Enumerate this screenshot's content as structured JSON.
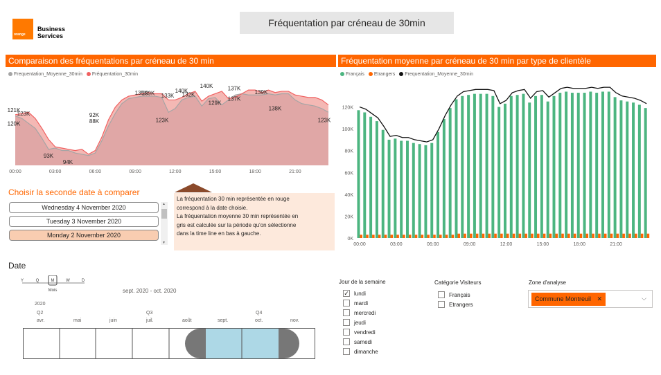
{
  "header": {
    "logo_word": "orange",
    "logo_line1": "Business",
    "logo_line2": "Services",
    "title": "Fréquentation par créneau de 30min"
  },
  "left_chart": {
    "section_title": "Comparaison des fréquentations par créneau de 30 min",
    "legend": [
      {
        "name": "Frequentation_Moyenne_30min",
        "color": "#a5a5a5"
      },
      {
        "name": "Fréquentation_30min",
        "color": "#f06060"
      }
    ],
    "x_ticks": [
      "00:00",
      "03:00",
      "06:00",
      "09:00",
      "12:00",
      "15:00",
      "18:00",
      "21:00"
    ],
    "data_labels": [
      "121K",
      "123K",
      "120K",
      "93K",
      "94K",
      "92K",
      "88K",
      "135K",
      "139K",
      "123K",
      "133K",
      "140K",
      "132K",
      "140K",
      "129K",
      "137K",
      "137K",
      "139K",
      "138K",
      "123K"
    ]
  },
  "right_chart": {
    "section_title": "Fréquentation moyenne par créneau de 30 min par type de clientèle",
    "legend": [
      {
        "name": "Français",
        "color": "#4cb580"
      },
      {
        "name": "Etrangers",
        "color": "#ff6600"
      },
      {
        "name": "Frequentation_Moyenne_30min",
        "color": "#111111"
      }
    ],
    "y_ticks": [
      "120K",
      "100K",
      "80K",
      "60K",
      "40K",
      "20K",
      "0K"
    ],
    "x_ticks": [
      "00:00",
      "03:00",
      "06:00",
      "09:00",
      "12:00",
      "15:00",
      "18:00",
      "21:00"
    ]
  },
  "chart_data": [
    {
      "type": "area",
      "title": "Comparaison des fréquentations par créneau de 30 min",
      "x": [
        "00:00",
        "00:30",
        "01:00",
        "01:30",
        "02:00",
        "02:30",
        "03:00",
        "03:30",
        "04:00",
        "04:30",
        "05:00",
        "05:30",
        "06:00",
        "06:30",
        "07:00",
        "07:30",
        "08:00",
        "08:30",
        "09:00",
        "09:30",
        "10:00",
        "10:30",
        "11:00",
        "11:30",
        "12:00",
        "12:30",
        "13:00",
        "13:30",
        "14:00",
        "14:30",
        "15:00",
        "15:30",
        "16:00",
        "16:30",
        "17:00",
        "17:30",
        "18:00",
        "18:30",
        "19:00",
        "19:30",
        "20:00",
        "20:30",
        "21:00",
        "21:30",
        "22:00",
        "22:30",
        "23:00",
        "23:30"
      ],
      "series": [
        {
          "name": "Frequentation_Moyenne_30min",
          "values": [
            120,
            118,
            114,
            110,
            102,
            93,
            94,
            92,
            92,
            90,
            89,
            88,
            90,
            100,
            112,
            122,
            130,
            134,
            135,
            136,
            136,
            136,
            135,
            123,
            126,
            133,
            135,
            136,
            128,
            134,
            135,
            129,
            133,
            137,
            138,
            137,
            137,
            137,
            138,
            137,
            138,
            138,
            133,
            130,
            129,
            128,
            126,
            123
          ]
        },
        {
          "name": "Fréquentation_30min",
          "values": [
            121,
            122,
            123,
            118,
            110,
            101,
            95,
            94,
            93,
            92,
            93,
            89,
            92,
            103,
            117,
            127,
            133,
            136,
            137,
            138,
            139,
            138,
            138,
            133,
            133,
            135,
            138,
            140,
            132,
            136,
            138,
            140,
            134,
            135,
            138,
            141,
            141,
            139,
            141,
            139,
            140,
            140,
            137,
            136,
            135,
            135,
            133,
            129
          ]
        }
      ],
      "ylim": [
        80,
        145
      ]
    },
    {
      "type": "bar",
      "title": "Fréquentation moyenne par créneau de 30 min par type de clientèle",
      "x": [
        "00:00",
        "00:30",
        "01:00",
        "01:30",
        "02:00",
        "02:30",
        "03:00",
        "03:30",
        "04:00",
        "04:30",
        "05:00",
        "05:30",
        "06:00",
        "06:30",
        "07:00",
        "07:30",
        "08:00",
        "08:30",
        "09:00",
        "09:30",
        "10:00",
        "10:30",
        "11:00",
        "11:30",
        "12:00",
        "12:30",
        "13:00",
        "13:30",
        "14:00",
        "14:30",
        "15:00",
        "15:30",
        "16:00",
        "16:30",
        "17:00",
        "17:30",
        "18:00",
        "18:30",
        "19:00",
        "19:30",
        "20:00",
        "20:30",
        "21:00",
        "21:30",
        "22:00",
        "22:30",
        "23:00",
        "23:30"
      ],
      "series": [
        {
          "name": "Français",
          "values": [
            117,
            115,
            111,
            107,
            99,
            90,
            91,
            89,
            89,
            87,
            86,
            85,
            87,
            97,
            109,
            119,
            127,
            130,
            131,
            132,
            132,
            132,
            130,
            120,
            123,
            130,
            131,
            132,
            124,
            130,
            131,
            125,
            130,
            133,
            134,
            133,
            133,
            133,
            134,
            133,
            134,
            134,
            129,
            126,
            125,
            124,
            122,
            119
          ]
        },
        {
          "name": "Etrangers",
          "values": [
            3,
            3,
            3,
            3,
            3,
            3,
            3,
            3,
            3,
            3,
            3,
            3,
            3,
            3,
            3,
            3,
            4,
            4,
            4,
            4,
            4,
            4,
            4,
            4,
            4,
            4,
            4,
            4,
            4,
            4,
            4,
            4,
            4,
            4,
            4,
            4,
            4,
            4,
            4,
            4,
            4,
            4,
            4,
            4,
            4,
            4,
            4,
            4
          ]
        },
        {
          "name": "Frequentation_Moyenne_30min",
          "values": [
            120,
            118,
            114,
            110,
            102,
            93,
            94,
            92,
            92,
            90,
            89,
            88,
            90,
            100,
            112,
            122,
            130,
            134,
            135,
            136,
            136,
            136,
            135,
            123,
            126,
            133,
            135,
            136,
            128,
            134,
            135,
            129,
            133,
            137,
            138,
            137,
            137,
            137,
            138,
            137,
            138,
            138,
            133,
            130,
            129,
            128,
            126,
            123
          ]
        }
      ],
      "ylim": [
        0,
        140
      ]
    }
  ],
  "compare": {
    "title": "Choisir la seconde date à comparer",
    "dates": [
      {
        "label": "Wednesday 4 November 2020",
        "selected": false
      },
      {
        "label": "Tuesday 3 November 2020",
        "selected": false
      },
      {
        "label": "Monday 2 November 2020",
        "selected": true
      }
    ],
    "info_line1": "La fréquentation 30 min représentée en rouge",
    "info_line2": "correspond à la date choisie.",
    "info_line3": "La fréquentation moyenne 30 min représentée en",
    "info_line4": "gris est calculée sur la période qu'on sélectionne",
    "info_line5": "dans la time line en bas à gauche."
  },
  "timeline": {
    "title": "Date",
    "granularity": [
      "Y",
      "Q",
      "M",
      "W",
      "D"
    ],
    "granularity_selected": "M",
    "granularity_caption": "Mois",
    "range_label": "sept. 2020 - oct. 2020",
    "year": "2020",
    "quarters": [
      "Q2",
      "Q3",
      "Q4"
    ],
    "months": [
      "avr.",
      "mai",
      "juin",
      "juil.",
      "août",
      "sept.",
      "oct.",
      "nov."
    ]
  },
  "filters": {
    "day_title": "Jour de la semaine",
    "days": [
      {
        "label": "lundi",
        "checked": true
      },
      {
        "label": "mardi",
        "checked": false
      },
      {
        "label": "mercredi",
        "checked": false
      },
      {
        "label": "jeudi",
        "checked": false
      },
      {
        "label": "vendredi",
        "checked": false
      },
      {
        "label": "samedi",
        "checked": false
      },
      {
        "label": "dimanche",
        "checked": false
      }
    ],
    "cat_title": "Catégorie Visiteurs",
    "cats": [
      {
        "label": "Français",
        "checked": false
      },
      {
        "label": "Etrangers",
        "checked": false
      }
    ],
    "zone_title": "Zone d'analyse",
    "zone_value": "Commune Montreuil"
  }
}
